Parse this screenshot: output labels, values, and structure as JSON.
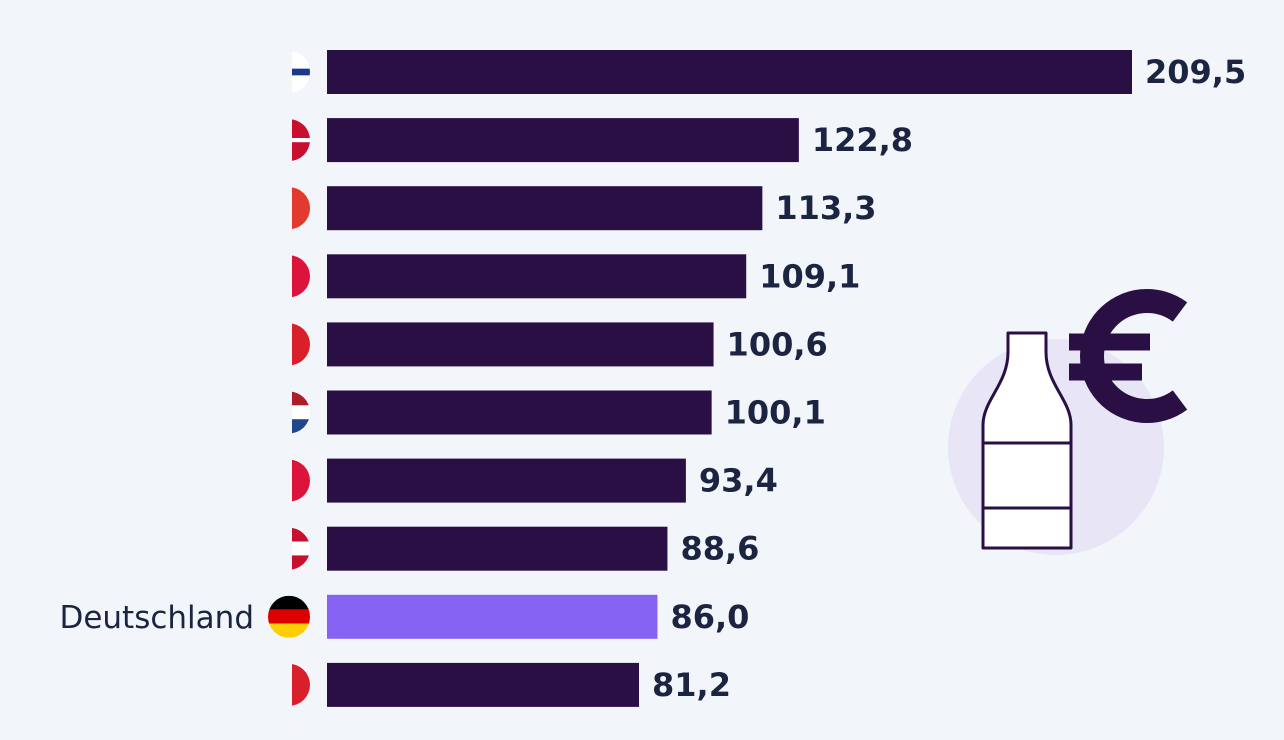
{
  "chart_data": {
    "type": "bar",
    "orientation": "horizontal",
    "categories": [
      "",
      "",
      "",
      "",
      "",
      "",
      "",
      "",
      "Deutschland",
      ""
    ],
    "values": [
      209.5,
      122.8,
      113.3,
      109.1,
      100.6,
      100.1,
      93.4,
      88.6,
      86.0,
      81.2
    ],
    "value_labels": [
      "209,5",
      "122,8",
      "113,3",
      "109,1",
      "100,6",
      "100,1",
      "93,4",
      "88,6",
      "86,0",
      "81,2"
    ],
    "highlight_index": 8,
    "colors": {
      "bar": "#2a0f44",
      "highlight": "#8663f2",
      "label": "#1b2440"
    },
    "xlim": [
      0,
      209.5
    ]
  },
  "illustration": {
    "icons": [
      "bottle-icon",
      "euro-icon"
    ],
    "colors": {
      "circle": "#e8e5f6",
      "bottle": "#ffffff",
      "euro": "#2a0f44"
    }
  }
}
